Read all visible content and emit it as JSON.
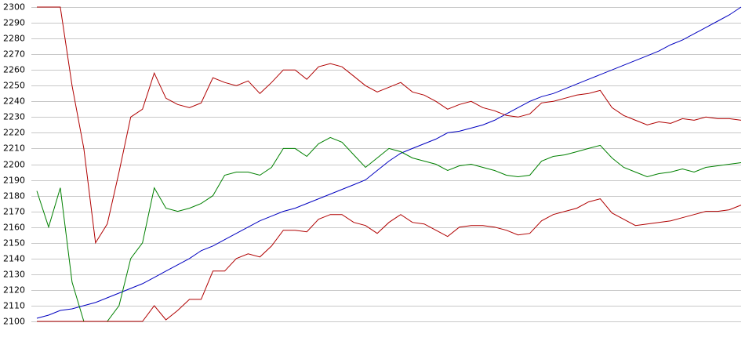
{
  "chart_data": {
    "type": "line",
    "ylim": [
      2100,
      2300
    ],
    "yticks": [
      2100,
      2110,
      2120,
      2130,
      2140,
      2150,
      2160,
      2170,
      2180,
      2190,
      2200,
      2210,
      2220,
      2230,
      2240,
      2250,
      2260,
      2270,
      2280,
      2290,
      2300
    ],
    "grid": true,
    "series": [
      {
        "color": "#0000c0",
        "values": [
          2102,
          2104,
          2107,
          2108,
          2110,
          2112,
          2115,
          2118,
          2121,
          2124,
          2128,
          2132,
          2136,
          2140,
          2145,
          2148,
          2152,
          2156,
          2160,
          2164,
          2167,
          2170,
          2172,
          2175,
          2178,
          2181,
          2184,
          2187,
          2190,
          2196,
          2202,
          2207,
          2210,
          2213,
          2216,
          2220,
          2221,
          2223,
          2225,
          2228,
          2232,
          2236,
          2240,
          2243,
          2245,
          2248,
          2251,
          2254,
          2257,
          2260,
          2263,
          2266,
          2269,
          2272,
          2276,
          2279,
          2283,
          2287,
          2291,
          2295,
          2300
        ]
      },
      {
        "color": "#b00000",
        "values": [
          2300,
          2300,
          2300,
          2250,
          2210,
          2150,
          2162,
          2195,
          2230,
          2235,
          2258,
          2242,
          2238,
          2236,
          2239,
          2255,
          2252,
          2250,
          2253,
          2245,
          2252,
          2260,
          2260,
          2254,
          2262,
          2264,
          2262,
          2256,
          2250,
          2246,
          2249,
          2252,
          2246,
          2244,
          2240,
          2235,
          2238,
          2240,
          2236,
          2234,
          2231,
          2230,
          2232,
          2239,
          2240,
          2242,
          2244,
          2245,
          2247,
          2236,
          2231,
          2228,
          2225,
          2227,
          2226,
          2229,
          2228,
          2230,
          2229,
          2229,
          2228
        ]
      },
      {
        "color": "#008000",
        "values": [
          2183,
          2160,
          2185,
          2125,
          2100,
          2100,
          2100,
          2110,
          2140,
          2150,
          2185,
          2172,
          2170,
          2172,
          2175,
          2180,
          2193,
          2195,
          2195,
          2193,
          2198,
          2210,
          2210,
          2205,
          2213,
          2217,
          2214,
          2206,
          2198,
          2204,
          2210,
          2208,
          2204,
          2202,
          2200,
          2196,
          2199,
          2200,
          2198,
          2196,
          2193,
          2192,
          2193,
          2202,
          2205,
          2206,
          2208,
          2210,
          2212,
          2204,
          2198,
          2195,
          2192,
          2194,
          2195,
          2197,
          2195,
          2198,
          2199,
          2200,
          2201
        ]
      },
      {
        "color": "#b00000",
        "values": [
          2100,
          2100,
          2100,
          2100,
          2100,
          2100,
          2100,
          2100,
          2100,
          2100,
          2110,
          2101,
          2107,
          2114,
          2114,
          2132,
          2132,
          2140,
          2143,
          2141,
          2148,
          2158,
          2158,
          2157,
          2165,
          2168,
          2168,
          2163,
          2161,
          2156,
          2163,
          2168,
          2163,
          2162,
          2158,
          2154,
          2160,
          2161,
          2161,
          2160,
          2158,
          2155,
          2156,
          2164,
          2168,
          2170,
          2172,
          2176,
          2178,
          2169,
          2165,
          2161,
          2162,
          2163,
          2164,
          2166,
          2168,
          2170,
          2170,
          2171,
          2174
        ]
      }
    ]
  }
}
